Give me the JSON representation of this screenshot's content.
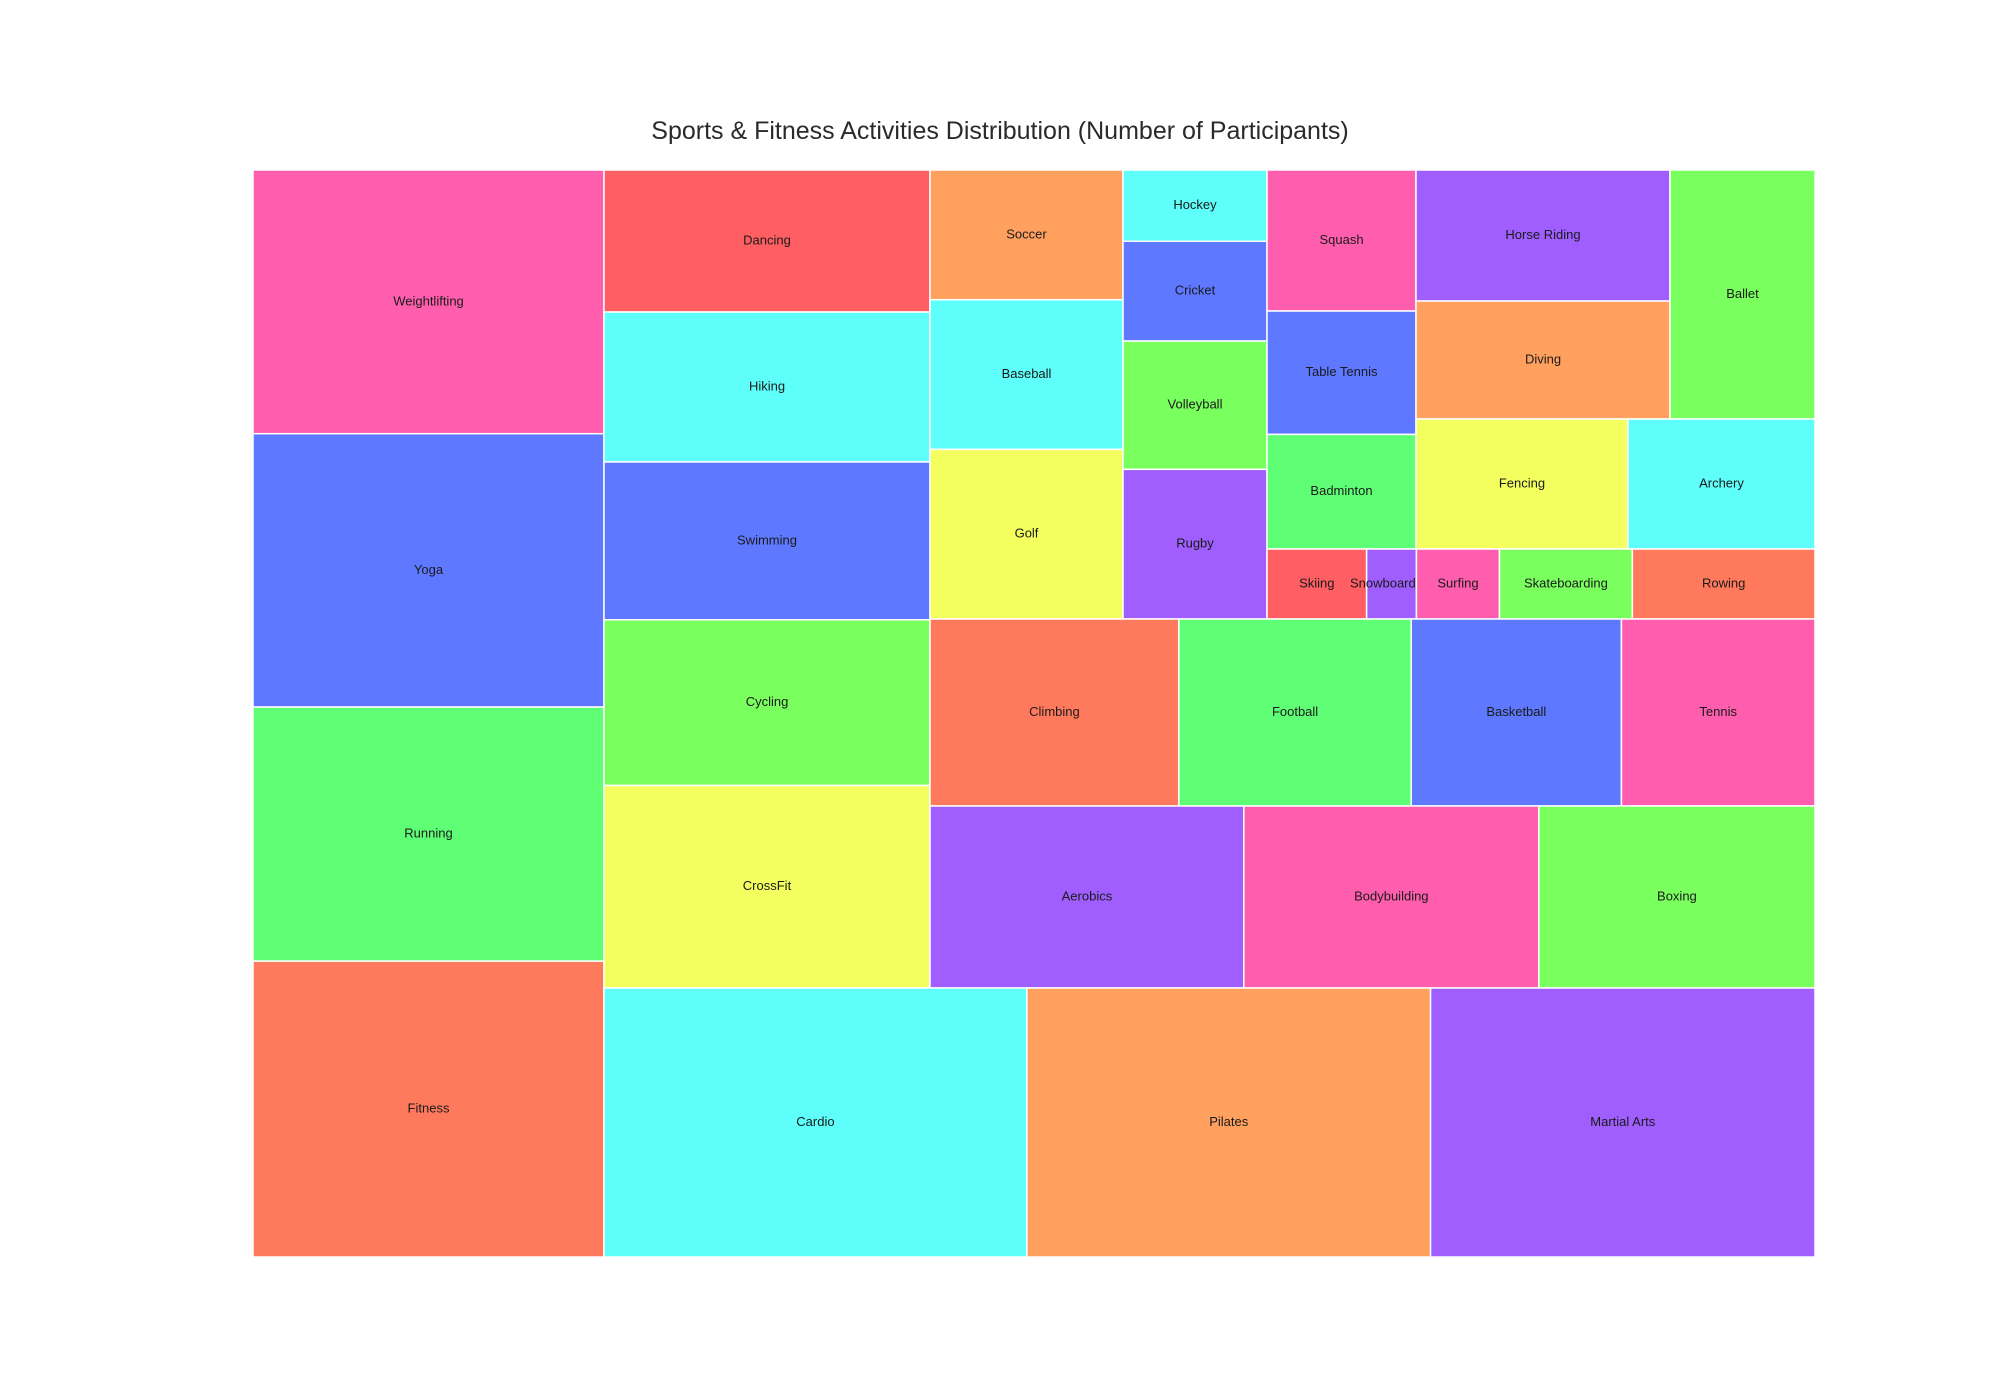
{
  "chart_data": {
    "type": "treemap",
    "title": "Sports & Fitness Activities Distribution (Number of Participants)",
    "palette": [
      "#FF7A5C",
      "#5EFF75",
      "#5E78FF",
      "#FF5EAF",
      "#F2FF5E",
      "#79FF5E",
      "#5EFFFA",
      "#FF5E63",
      "#A05EFF",
      "#FFA05E"
    ],
    "groups": [
      {
        "name": "col1",
        "values": [
          8200,
          8500,
          7900,
          9200
        ],
        "items": [
          "Weightlifting",
          "Yoga",
          "Running",
          "Fitness"
        ],
        "colors": [
          "#FF5EAF",
          "#5E78FF",
          "#5EFF75",
          "#FF7A5C"
        ]
      },
      {
        "name": "col2",
        "values": [
          5400,
          5700,
          6000,
          6300,
          7700
        ],
        "items": [
          "Dancing",
          "Hiking",
          "Swimming",
          "Cycling",
          "CrossFit"
        ],
        "colors": [
          "#FF5E63",
          "#5EFFFA",
          "#5E78FF",
          "#79FF5E",
          "#F2FF5E"
        ]
      },
      {
        "name": "col3a",
        "values": [
          2600,
          3000,
          3400
        ],
        "items": [
          "Soccer",
          "Baseball",
          "Golf"
        ],
        "colors": [
          "#FFA05E",
          "#5EFFFA",
          "#F2FF5E"
        ]
      },
      {
        "name": "col3b",
        "values": [
          1000,
          1400,
          1800,
          2100
        ],
        "items": [
          "Hockey",
          "Cricket",
          "Volleyball",
          "Rugby"
        ],
        "colors": [
          "#5EFFFA",
          "#5E78FF",
          "#79FF5E",
          "#A05EFF"
        ]
      },
      {
        "name": "col3c",
        "values": [
          1600,
          1400,
          1300
        ],
        "items": [
          "Squash",
          "Table Tennis",
          "Badminton"
        ],
        "colors": [
          "#FF5EAF",
          "#5E78FF",
          "#5EFF75"
        ]
      },
      {
        "name": "col3d",
        "values": [
          2000,
          1800
        ],
        "items": [
          "Horse Riding",
          "Diving"
        ],
        "colors": [
          "#A05EFF",
          "#FFA05E"
        ]
      },
      {
        "name": "col3e",
        "values": [
          1900
        ],
        "items": [
          "Ballet"
        ],
        "colors": [
          "#79FF5E"
        ]
      },
      {
        "name": "col3f",
        "values": [
          1700,
          1500
        ],
        "items": [
          "Fencing",
          "Archery"
        ],
        "colors": [
          "#F2FF5E",
          "#5EFFFA"
        ]
      },
      {
        "name": "col3g",
        "values": [
          600,
          300,
          500,
          800,
          1100
        ],
        "items": [
          "Skiing",
          "Snowboarding",
          "Surfing",
          "Skateboarding",
          "Rowing"
        ],
        "colors": [
          "#FF5E63",
          "#A05EFF",
          "#FF5EAF",
          "#79FF5E",
          "#FF7A5C"
        ]
      },
      {
        "name": "row4",
        "values": [
          4500,
          4200,
          3800,
          3500
        ],
        "items": [
          "Climbing",
          "Football",
          "Basketball",
          "Tennis"
        ],
        "colors": [
          "#FF7A5C",
          "#5EFF75",
          "#5E78FF",
          "#FF5EAF"
        ]
      },
      {
        "name": "row5",
        "values": [
          5000,
          4700,
          4400
        ],
        "items": [
          "Aerobics",
          "Bodybuilding",
          "Boxing"
        ],
        "colors": [
          "#A05EFF",
          "#FF5EAF",
          "#79FF5E"
        ]
      },
      {
        "name": "row6",
        "values": [
          6600,
          6300,
          6000
        ],
        "items": [
          "Cardio",
          "Pilates",
          "Martial Arts"
        ],
        "colors": [
          "#5EFFFA",
          "#FFA05E",
          "#A05EFF"
        ]
      }
    ]
  }
}
